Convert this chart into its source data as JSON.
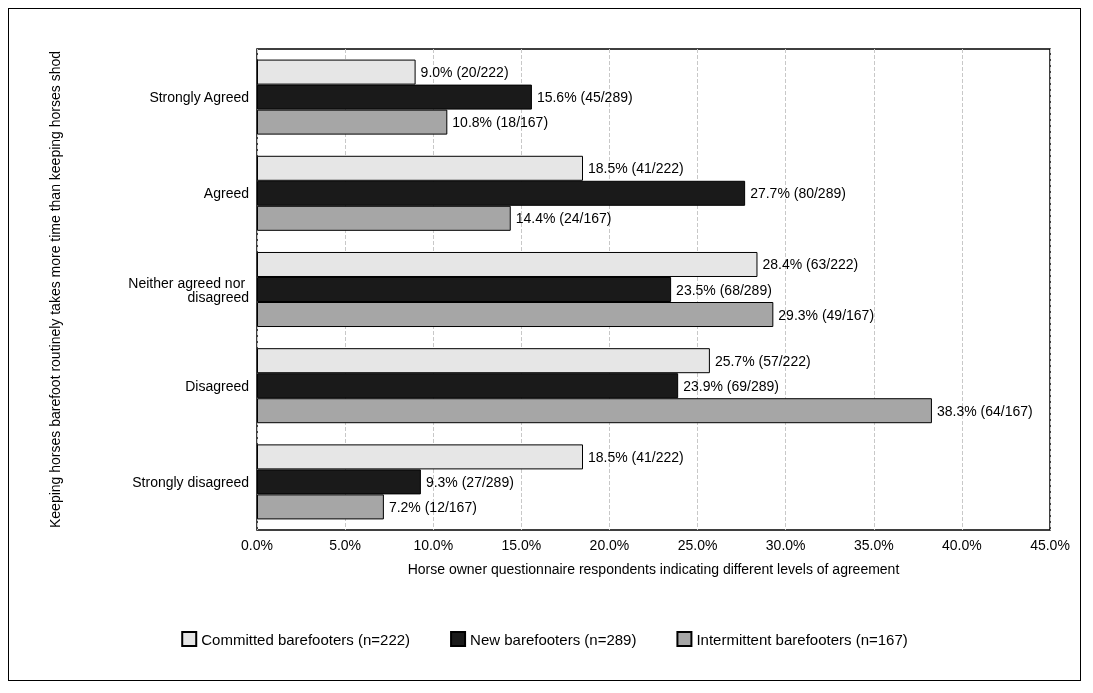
{
  "chart_data": {
    "type": "bar",
    "orientation": "horizontal",
    "ylabel": "Keeping horses barefoot routinely takes more time than keeping horses shod",
    "xlabel": "Horse owner questionnaire respondents indicating different levels of agreement",
    "categories": [
      "Strongly Agreed",
      "Agreed",
      "Neither agreed nor disagreed",
      "Disagreed",
      "Strongly disagreed"
    ],
    "series": [
      {
        "name": "Committed barefooters (n=222)",
        "color": "#e6e6e6",
        "values": [
          9.0,
          18.5,
          28.4,
          25.7,
          18.5
        ],
        "value_labels": [
          "9.0% (20/222)",
          "18.5% (41/222)",
          "28.4% (63/222)",
          "25.7% (57/222)",
          "18.5% (41/222)"
        ]
      },
      {
        "name": "New barefooters (n=289)",
        "color": "#1a1a1a",
        "values": [
          15.6,
          27.7,
          23.5,
          23.9,
          9.3
        ],
        "value_labels": [
          "15.6% (45/289)",
          "27.7% (80/289)",
          "23.5% (68/289)",
          "23.9% (69/289)",
          "9.3% (27/289)"
        ]
      },
      {
        "name": "Intermittent barefooters (n=167)",
        "color": "#a6a6a6",
        "values": [
          10.8,
          14.4,
          29.3,
          38.3,
          7.2
        ],
        "value_labels": [
          "10.8% (18/167)",
          "14.4% (24/167)",
          "29.3% (49/167)",
          "38.3% (64/167)",
          "7.2% (12/167)"
        ]
      }
    ],
    "xlim": [
      0,
      45
    ],
    "xticks": [
      {
        "value": 0,
        "label": "0.0%"
      },
      {
        "value": 5,
        "label": "5.0%"
      },
      {
        "value": 10,
        "label": "10.0%"
      },
      {
        "value": 15,
        "label": "15.0%"
      },
      {
        "value": 20,
        "label": "20.0%"
      },
      {
        "value": 25,
        "label": "25.0%"
      },
      {
        "value": 30,
        "label": "30.0%"
      },
      {
        "value": 35,
        "label": "35.0%"
      },
      {
        "value": 40,
        "label": "40.0%"
      },
      {
        "value": 45,
        "label": "45.0%"
      }
    ],
    "grid": "x",
    "legend": "bottom"
  }
}
